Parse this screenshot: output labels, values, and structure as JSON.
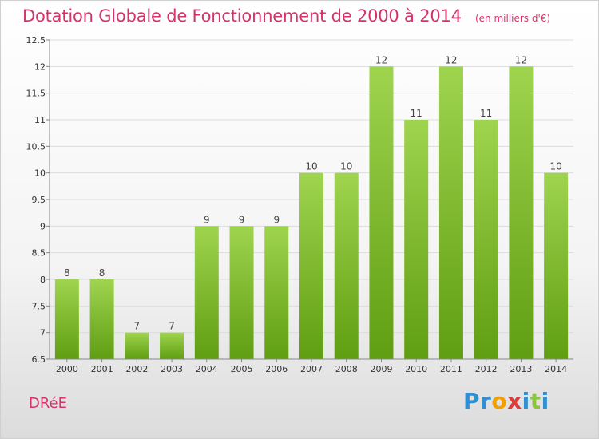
{
  "header": {
    "title": "Dotation Globale de Fonctionnement de 2000 à 2014",
    "subtitle": "(en milliers d'€)"
  },
  "footer": {
    "commune": "DRéE",
    "logo_letters": [
      {
        "ch": "P",
        "color": "#2f8fd0"
      },
      {
        "ch": "r",
        "color": "#2f8fd0"
      },
      {
        "ch": "o",
        "color": "#f2a000"
      },
      {
        "ch": "x",
        "color": "#e03a3a"
      },
      {
        "ch": "i",
        "color": "#2f8fd0"
      },
      {
        "ch": "t",
        "color": "#8cc63f"
      },
      {
        "ch": "i",
        "color": "#2f8fd0"
      }
    ]
  },
  "chart_data": {
    "type": "bar",
    "title": "Dotation Globale de Fonctionnement de 2000 à 2014",
    "subtitle": "(en milliers d'€)",
    "categories": [
      "2000",
      "2001",
      "2002",
      "2003",
      "2004",
      "2005",
      "2006",
      "2007",
      "2008",
      "2009",
      "2010",
      "2011",
      "2012",
      "2013",
      "2014"
    ],
    "values": [
      8,
      8,
      7,
      7,
      9,
      9,
      9,
      10,
      10,
      12,
      11,
      12,
      11,
      12,
      10
    ],
    "ylim": [
      6.5,
      12.5
    ],
    "yticks": [
      6.5,
      7,
      7.5,
      8,
      8.5,
      9,
      9.5,
      10,
      10.5,
      11,
      11.5,
      12,
      12.5
    ],
    "ytick_labels": [
      "6.5",
      "7",
      "7.5",
      "8",
      "8.5",
      "9",
      "9.5",
      "10",
      "10.5",
      "11",
      "11.5",
      "12",
      "12.5"
    ],
    "grid": true,
    "colors": {
      "bar_top": "#9fd44f",
      "bar_bottom": "#5f9e12",
      "grid": "#dddddd",
      "axis": "#888888"
    }
  }
}
